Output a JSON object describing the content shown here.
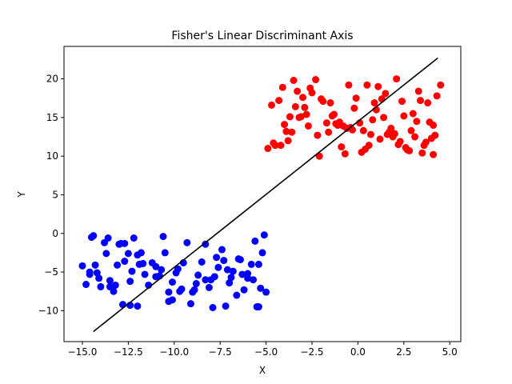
{
  "chart_data": {
    "type": "scatter",
    "title": "Fisher's Linear Discriminant Axis",
    "xlabel": "X",
    "ylabel": "Y",
    "xlim": [
      -16.0,
      5.6
    ],
    "ylim": [
      -14.0,
      24.2
    ],
    "grid": false,
    "xticks": [
      -15.0,
      -12.5,
      -10.0,
      -7.5,
      -5.0,
      -2.5,
      0.0,
      2.5,
      5.0
    ],
    "xtick_labels": [
      "−15.0",
      "−12.5",
      "−10.0",
      "−7.5",
      "−5.0",
      "−2.5",
      "0.0",
      "2.5",
      "5.0"
    ],
    "yticks": [
      -10,
      -5,
      0,
      5,
      10,
      15,
      20
    ],
    "ytick_labels": [
      "−10",
      "−5",
      "0",
      "5",
      "10",
      "15",
      "20"
    ],
    "series": [
      {
        "color": "#0000ff",
        "kind": "points",
        "x": [
          -15.0,
          -14.8,
          -14.6,
          -14.5,
          -14.4,
          -14.3,
          -14.1,
          -13.8,
          -13.7,
          -13.5,
          -13.6,
          -13.2,
          -13.1,
          -12.9,
          -12.8,
          -12.7,
          -12.5,
          -12.4,
          -12.3,
          -12.2,
          -12.0,
          -11.8,
          -11.6,
          -11.4,
          -11.2,
          -11.0,
          -10.8,
          -10.6,
          -10.5,
          -10.3,
          -10.1,
          -9.9,
          -9.7,
          -9.5,
          -9.3,
          -9.1,
          -8.9,
          -8.7,
          -8.5,
          -8.3,
          -8.1,
          -7.9,
          -7.8,
          -7.6,
          -7.4,
          -7.2,
          -7.0,
          -6.8,
          -6.6,
          -6.4,
          -6.2,
          -6.0,
          -5.8,
          -5.6,
          -5.4,
          -5.2,
          -5.1,
          -5.0,
          -5.5,
          -5.4,
          -5.3,
          -6.0,
          -6.5,
          -7.1,
          -7.7,
          -8.3,
          -9.0,
          -9.8,
          -10.3,
          -11.0,
          -11.7,
          -12.4,
          -13.0,
          -13.5,
          -14.0,
          -14.6,
          -12.7,
          -11.9,
          -10.1,
          -8.8,
          -7.3,
          -6.9,
          -13.3,
          -12.0,
          -9.6,
          -6.3,
          -5.7,
          -14.2,
          -10.7,
          -8.0
        ],
        "y": [
          -4.2,
          -6.6,
          -5.3,
          -0.5,
          -0.3,
          -4.1,
          -5.8,
          -1.2,
          -2.6,
          -6.9,
          -0.6,
          -6.7,
          -4.1,
          -1.3,
          -9.2,
          -3.6,
          -2.6,
          -6.2,
          -4.9,
          -0.6,
          -2.8,
          -2.5,
          -5.3,
          -6.7,
          -3.8,
          -4.3,
          -5.5,
          -0.4,
          -2.5,
          -8.8,
          -6.3,
          -5.1,
          -7.5,
          -3.8,
          -1.2,
          -9.1,
          -7.3,
          -5.4,
          -3.7,
          -1.4,
          -7.0,
          -9.6,
          -5.6,
          -4.4,
          -2.1,
          -9.4,
          -6.4,
          -4.9,
          -8.0,
          -3.4,
          -7.3,
          -5.2,
          -4.0,
          -1.0,
          -9.5,
          -2.5,
          -0.2,
          -7.6,
          -9.5,
          -4.0,
          -7.1,
          -5.8,
          -3.3,
          -4.7,
          -3.1,
          -6.0,
          -7.6,
          -4.6,
          -7.6,
          -5.6,
          -3.9,
          -9.3,
          -1.4,
          -6.1,
          -6.9,
          -5.0,
          -1.3,
          -4.0,
          -8.6,
          -6.5,
          -3.5,
          -5.7,
          -7.5,
          -9.4,
          -7.2,
          -5.3,
          -6.0,
          -5.1,
          -4.7,
          -6.0
        ]
      },
      {
        "color": "#ff0000",
        "kind": "points",
        "x": [
          -4.9,
          -4.7,
          -4.5,
          -4.3,
          -4.1,
          -3.9,
          -3.7,
          -3.5,
          -3.3,
          -3.1,
          -2.9,
          -2.7,
          -2.5,
          -2.3,
          -2.1,
          -1.9,
          -1.7,
          -1.5,
          -1.3,
          -1.1,
          -0.9,
          -0.7,
          -0.5,
          -0.3,
          -0.1,
          0.1,
          0.3,
          0.5,
          0.7,
          0.9,
          1.1,
          1.3,
          1.5,
          1.7,
          1.9,
          2.1,
          2.3,
          2.5,
          2.7,
          2.9,
          3.1,
          3.3,
          3.5,
          3.7,
          3.9,
          4.1,
          4.3,
          4.5,
          -4.6,
          -4.0,
          -3.4,
          -2.8,
          -2.2,
          -1.6,
          -1.0,
          -0.4,
          0.2,
          0.8,
          1.4,
          2.0,
          2.6,
          3.2,
          3.8,
          4.2,
          -3.8,
          -3.0,
          -2.0,
          -1.2,
          -0.2,
          0.6,
          1.2,
          1.8,
          2.4,
          3.0,
          3.6,
          4.1,
          -4.2,
          -3.6,
          -2.6,
          -1.4,
          -0.6,
          0.4,
          1.6,
          2.2,
          2.8,
          3.4,
          4.0,
          -3.2,
          -0.8,
          1.0
        ],
        "y": [
          11.0,
          16.6,
          11.4,
          17.2,
          18.9,
          13.2,
          15.1,
          19.8,
          18.4,
          15.1,
          16.3,
          13.9,
          18.2,
          19.9,
          10.0,
          17.1,
          14.3,
          16.9,
          15.4,
          14.0,
          11.2,
          10.3,
          19.2,
          13.4,
          17.5,
          14.3,
          13.3,
          19.2,
          12.8,
          16.9,
          19.0,
          17.4,
          18.1,
          13.1,
          12.5,
          20.0,
          11.9,
          15.2,
          10.8,
          13.3,
          12.5,
          18.4,
          10.4,
          11.8,
          14.4,
          10.2,
          17.8,
          19.2,
          11.7,
          14.1,
          16.4,
          15.4,
          12.7,
          13.1,
          14.4,
          13.7,
          10.5,
          14.7,
          15.0,
          12.9,
          11.1,
          14.5,
          16.9,
          12.7,
          12.0,
          17.6,
          17.4,
          14.2,
          16.2,
          11.4,
          12.2,
          13.6,
          17.1,
          15.5,
          11.4,
          14.0,
          11.4,
          13.1,
          18.8,
          15.2,
          13.6,
          10.9,
          12.8,
          11.5,
          10.7,
          17.2,
          12.3,
          15.0,
          13.9,
          16.0
        ]
      },
      {
        "color": "#000000",
        "kind": "line",
        "x": [
          -14.4,
          4.35
        ],
        "y": [
          -12.7,
          22.7
        ]
      }
    ]
  }
}
